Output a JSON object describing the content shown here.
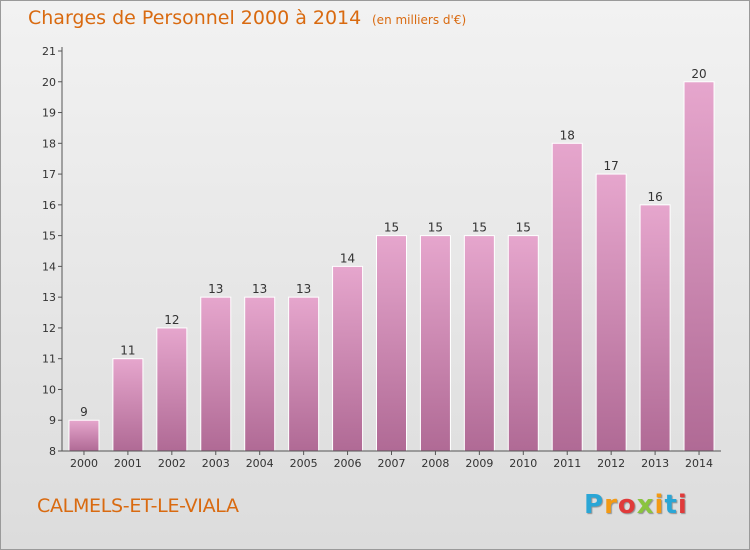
{
  "header": {
    "title": "Charges de Personnel 2000 à 2014",
    "subtitle": "(en milliers d'€)"
  },
  "footer": {
    "town": "CALMELS-ET-LE-VIALA",
    "logo_letters": [
      "P",
      "r",
      "o",
      "x",
      "i",
      "t",
      "i"
    ],
    "logo_colors": [
      "#2aa6d6",
      "#f39a14",
      "#e03a3a",
      "#8ac43f",
      "#f39a14",
      "#2aa6d6",
      "#e03a3a"
    ]
  },
  "colors": {
    "bar_light": "#e6a6cd",
    "bar_dark": "#b06a95",
    "axis": "#555555",
    "text": "#333333",
    "accent": "#d96a10"
  },
  "chart_data": {
    "type": "bar",
    "categories": [
      "2000",
      "2001",
      "2002",
      "2003",
      "2004",
      "2005",
      "2006",
      "2007",
      "2008",
      "2009",
      "2010",
      "2011",
      "2012",
      "2013",
      "2014"
    ],
    "values": [
      9,
      11,
      12,
      13,
      13,
      13,
      14,
      15,
      15,
      15,
      15,
      18,
      17,
      16,
      20
    ],
    "data_labels": [
      "9",
      "11",
      "12",
      "13",
      "13",
      "13",
      "14",
      "15",
      "15",
      "15",
      "15",
      "18",
      "17",
      "16",
      "20"
    ],
    "y_ticks": [
      "8",
      "9",
      "10",
      "11",
      "12",
      "13",
      "14",
      "15",
      "16",
      "17",
      "18",
      "19",
      "20",
      "21"
    ],
    "ylim": [
      8,
      21
    ],
    "grid": false,
    "legend": "none"
  }
}
